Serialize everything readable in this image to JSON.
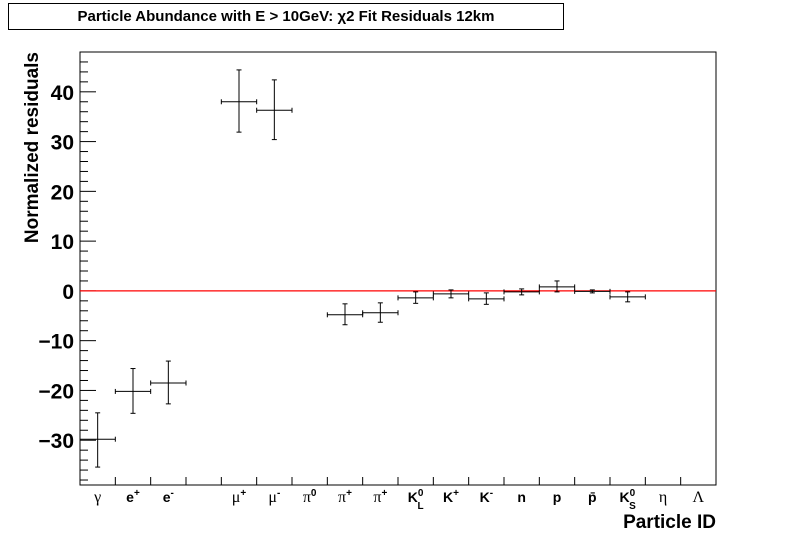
{
  "chart_data": {
    "type": "scatter",
    "title": "Particle Abundance with E > 10GeV: χ2 Fit Residuals 12km",
    "xlabel": "Particle ID",
    "ylabel": "Normalized residuals",
    "ylim": [
      -39,
      48
    ],
    "yticks": [
      40,
      30,
      20,
      10,
      0,
      -10,
      -20,
      -30
    ],
    "ytick_labels": [
      "40",
      "30",
      "20",
      "10",
      "0",
      "−10",
      "−20",
      "−30"
    ],
    "categories": [
      {
        "text": "γ",
        "sup": "",
        "sub": "",
        "greek": true
      },
      {
        "text": "e",
        "sup": "+",
        "sub": "",
        "greek": false
      },
      {
        "text": "e",
        "sup": "-",
        "sub": "",
        "greek": false
      },
      {
        "text": "",
        "sup": "",
        "sub": "",
        "greek": false
      },
      {
        "text": "μ",
        "sup": "+",
        "sub": "",
        "greek": true
      },
      {
        "text": "μ",
        "sup": "-",
        "sub": "",
        "greek": true
      },
      {
        "text": "π",
        "sup": "0",
        "sub": "",
        "greek": true
      },
      {
        "text": "π",
        "sup": "+",
        "sub": "",
        "greek": true
      },
      {
        "text": "π",
        "sup": "+",
        "sub": "",
        "greek": true
      },
      {
        "text": "K",
        "sup": "0",
        "sub": "L",
        "greek": false
      },
      {
        "text": "K",
        "sup": "+",
        "sub": "",
        "greek": false
      },
      {
        "text": "K",
        "sup": "-",
        "sub": "",
        "greek": false
      },
      {
        "text": "n",
        "sup": "",
        "sub": "",
        "greek": false
      },
      {
        "text": "p",
        "sup": "",
        "sub": "",
        "greek": false
      },
      {
        "text": "p̄",
        "sup": "",
        "sub": "",
        "greek": false
      },
      {
        "text": "K",
        "sup": "0",
        "sub": "S",
        "greek": false
      },
      {
        "text": "η",
        "sup": "",
        "sub": "",
        "greek": true
      },
      {
        "text": "Λ",
        "sup": "",
        "sub": "",
        "greek": true
      }
    ],
    "points": [
      {
        "bin": 0,
        "y": -29.8,
        "yerr_low": 5.6,
        "yerr_high": 5.3
      },
      {
        "bin": 1,
        "y": -20.2,
        "yerr_low": 4.4,
        "yerr_high": 4.6
      },
      {
        "bin": 2,
        "y": -18.5,
        "yerr_low": 4.2,
        "yerr_high": 4.4
      },
      {
        "bin": 4,
        "y": 38.0,
        "yerr_low": 6.1,
        "yerr_high": 6.4
      },
      {
        "bin": 5,
        "y": 36.3,
        "yerr_low": 5.9,
        "yerr_high": 6.1
      },
      {
        "bin": 7,
        "y": -4.8,
        "yerr_low": 2.0,
        "yerr_high": 2.2
      },
      {
        "bin": 8,
        "y": -4.4,
        "yerr_low": 1.9,
        "yerr_high": 2.0
      },
      {
        "bin": 9,
        "y": -1.4,
        "yerr_low": 1.1,
        "yerr_high": 1.2
      },
      {
        "bin": 10,
        "y": -0.6,
        "yerr_low": 0.8,
        "yerr_high": 0.8
      },
      {
        "bin": 11,
        "y": -1.6,
        "yerr_low": 1.1,
        "yerr_high": 1.2
      },
      {
        "bin": 12,
        "y": -0.2,
        "yerr_low": 0.6,
        "yerr_high": 0.6
      },
      {
        "bin": 13,
        "y": 0.8,
        "yerr_low": 1.0,
        "yerr_high": 1.2
      },
      {
        "bin": 14,
        "y": -0.1,
        "yerr_low": 0.3,
        "yerr_high": 0.3
      },
      {
        "bin": 15,
        "y": -1.2,
        "yerr_low": 1.0,
        "yerr_high": 1.0
      }
    ],
    "reference_line": {
      "y": 0,
      "color": "#ff0000"
    },
    "grid": false,
    "legend": "none"
  }
}
